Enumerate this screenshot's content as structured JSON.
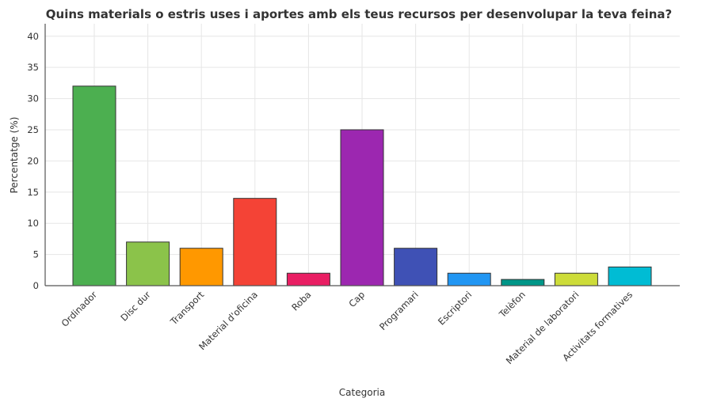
{
  "chart_data": {
    "type": "bar",
    "title": "Quins materials o estris uses i aportes amb els teus recursos per desenvolupar la teva feina?",
    "xlabel": "Categoria",
    "ylabel": "Percentatge (%)",
    "ylim": [
      0,
      42
    ],
    "yticks": [
      0,
      5,
      10,
      15,
      20,
      25,
      30,
      35,
      40
    ],
    "grid": true,
    "categories": [
      "Ordinador",
      "Disc dur",
      "Transport",
      "Material d'oficina",
      "Roba",
      "Cap",
      "Programari",
      "Escriptori",
      "Telèfon",
      "Material de laboratori",
      "Activitats formatives"
    ],
    "values": [
      32,
      7,
      6,
      14,
      2,
      25,
      6,
      2,
      1,
      2,
      3
    ],
    "colors": [
      "#4caf50",
      "#8bc34a",
      "#ff9800",
      "#f44336",
      "#e91e63",
      "#9c27b0",
      "#3f51b5",
      "#2196f3",
      "#009688",
      "#cddc39",
      "#00bcd4"
    ]
  }
}
